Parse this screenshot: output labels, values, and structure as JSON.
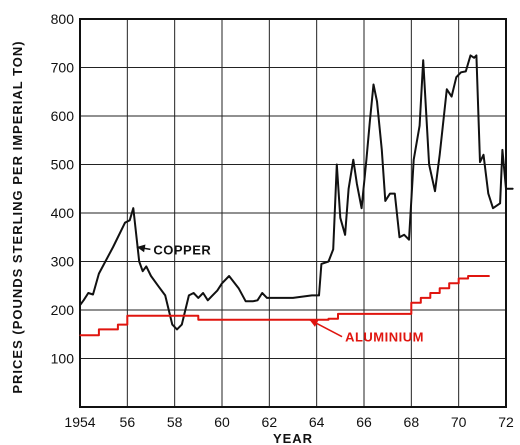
{
  "chart_data": {
    "type": "line",
    "xlabel": "YEAR",
    "ylabel": "PRICES (POUNDS STERLING PER IMPERIAL TON)",
    "xlim": [
      1954,
      1972
    ],
    "ylim": [
      0,
      800
    ],
    "x_ticks": [
      1954,
      1956,
      1958,
      1960,
      1962,
      1964,
      1966,
      1968,
      1970,
      1972
    ],
    "x_tick_labels": [
      "1954",
      "56",
      "58",
      "60",
      "62",
      "64",
      "66",
      "68",
      "70",
      "72"
    ],
    "y_ticks": [
      100,
      200,
      300,
      400,
      500,
      600,
      700,
      800
    ],
    "y_tick_labels": [
      "100",
      "200",
      "300",
      "400",
      "500",
      "600",
      "700",
      "800"
    ],
    "grid": true,
    "series": [
      {
        "name": "COPPER",
        "color": "#111111",
        "step": false,
        "points": [
          [
            1954.0,
            210
          ],
          [
            1954.15,
            220
          ],
          [
            1954.35,
            235
          ],
          [
            1954.55,
            232
          ],
          [
            1954.8,
            275
          ],
          [
            1955.4,
            330
          ],
          [
            1955.9,
            380
          ],
          [
            1956.1,
            385
          ],
          [
            1956.25,
            410
          ],
          [
            1956.5,
            300
          ],
          [
            1956.65,
            280
          ],
          [
            1956.8,
            290
          ],
          [
            1957.0,
            270
          ],
          [
            1957.3,
            250
          ],
          [
            1957.6,
            230
          ],
          [
            1957.9,
            170
          ],
          [
            1958.1,
            160
          ],
          [
            1958.3,
            170
          ],
          [
            1958.6,
            230
          ],
          [
            1958.8,
            235
          ],
          [
            1959.0,
            225
          ],
          [
            1959.2,
            235
          ],
          [
            1959.4,
            220
          ],
          [
            1959.6,
            230
          ],
          [
            1959.8,
            240
          ],
          [
            1960.0,
            255
          ],
          [
            1960.3,
            270
          ],
          [
            1960.7,
            245
          ],
          [
            1961.0,
            218
          ],
          [
            1961.3,
            218
          ],
          [
            1961.5,
            220
          ],
          [
            1961.7,
            235
          ],
          [
            1961.9,
            225
          ],
          [
            1962.3,
            225
          ],
          [
            1963.0,
            225
          ],
          [
            1963.8,
            230
          ],
          [
            1964.1,
            230
          ],
          [
            1964.2,
            295
          ],
          [
            1964.5,
            300
          ],
          [
            1964.7,
            325
          ],
          [
            1964.85,
            500
          ],
          [
            1965.0,
            390
          ],
          [
            1965.2,
            355
          ],
          [
            1965.35,
            450
          ],
          [
            1965.55,
            510
          ],
          [
            1965.7,
            460
          ],
          [
            1965.9,
            410
          ],
          [
            1966.1,
            510
          ],
          [
            1966.25,
            590
          ],
          [
            1966.4,
            665
          ],
          [
            1966.55,
            630
          ],
          [
            1966.75,
            530
          ],
          [
            1966.9,
            425
          ],
          [
            1967.1,
            440
          ],
          [
            1967.3,
            440
          ],
          [
            1967.5,
            350
          ],
          [
            1967.7,
            355
          ],
          [
            1967.9,
            345
          ],
          [
            1968.1,
            510
          ],
          [
            1968.35,
            580
          ],
          [
            1968.5,
            715
          ],
          [
            1968.75,
            500
          ],
          [
            1969.0,
            445
          ],
          [
            1969.2,
            520
          ],
          [
            1969.5,
            655
          ],
          [
            1969.7,
            640
          ],
          [
            1969.9,
            680
          ],
          [
            1970.1,
            690
          ],
          [
            1970.3,
            692
          ],
          [
            1970.5,
            725
          ],
          [
            1970.65,
            720
          ],
          [
            1970.75,
            725
          ],
          [
            1970.9,
            505
          ],
          [
            1971.05,
            520
          ],
          [
            1971.25,
            440
          ],
          [
            1971.45,
            410
          ],
          [
            1971.75,
            420
          ],
          [
            1971.85,
            530
          ],
          [
            1972.0,
            450
          ],
          [
            1972.3,
            450
          ]
        ]
      },
      {
        "name": "ALUMINIUM",
        "color": "#e0150f",
        "step": true,
        "points": [
          [
            1954.0,
            148
          ],
          [
            1954.8,
            160
          ],
          [
            1955.6,
            170
          ],
          [
            1956.0,
            188
          ],
          [
            1958.8,
            188
          ],
          [
            1959.0,
            180
          ],
          [
            1964.0,
            180
          ],
          [
            1964.5,
            182
          ],
          [
            1964.9,
            192
          ],
          [
            1967.9,
            192
          ],
          [
            1968.0,
            215
          ],
          [
            1968.4,
            225
          ],
          [
            1968.8,
            235
          ],
          [
            1969.2,
            245
          ],
          [
            1969.6,
            255
          ],
          [
            1970.0,
            265
          ],
          [
            1970.4,
            270
          ],
          [
            1971.3,
            270
          ]
        ]
      }
    ],
    "annotations": [
      {
        "text": "COPPER",
        "series": "COPPER",
        "x": 1957.1,
        "y": 325,
        "arrow_to": [
          1956.4,
          330
        ],
        "color": "#111111"
      },
      {
        "text": "ALUMINIUM",
        "series": "ALUMINIUM",
        "x": 1965.2,
        "y": 145,
        "arrow_to": [
          1963.7,
          180
        ],
        "color": "#e0150f"
      }
    ]
  }
}
